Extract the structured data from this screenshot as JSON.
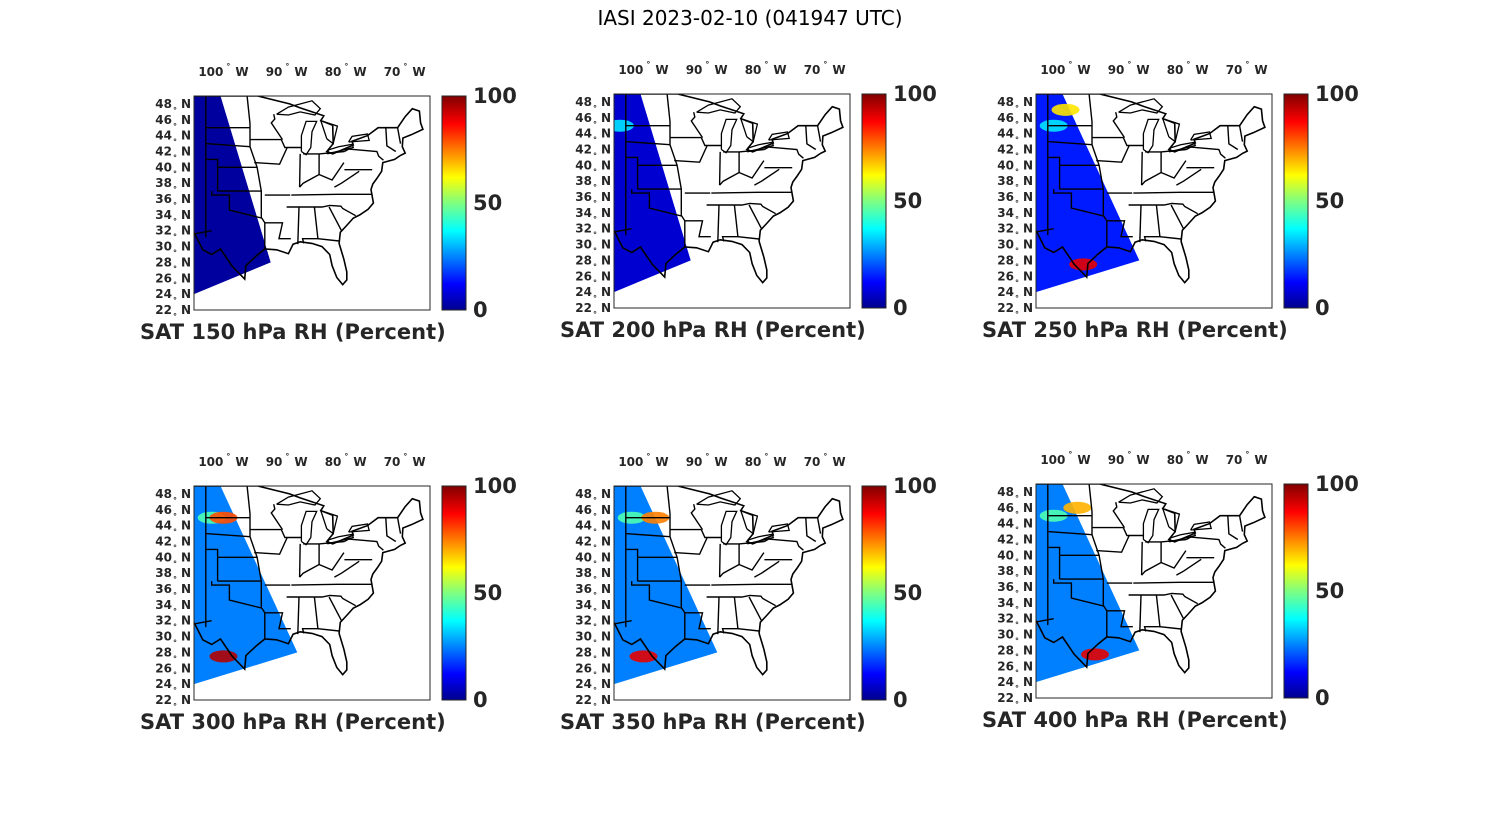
{
  "figure": {
    "title": "IASI 2023-02-10 (041947 UTC)"
  },
  "lon_ticks": [
    {
      "value": -100,
      "label": "100",
      "suffix": "W"
    },
    {
      "value": -90,
      "label": "90",
      "suffix": "W"
    },
    {
      "value": -80,
      "label": "80",
      "suffix": "W"
    },
    {
      "value": -70,
      "label": "70",
      "suffix": "W"
    }
  ],
  "lat_ticks": [
    {
      "value": 48,
      "label": "48",
      "suffix": "N"
    },
    {
      "value": 46,
      "label": "46",
      "suffix": "N"
    },
    {
      "value": 44,
      "label": "44",
      "suffix": "N"
    },
    {
      "value": 42,
      "label": "42",
      "suffix": "N"
    },
    {
      "value": 40,
      "label": "40",
      "suffix": "N"
    },
    {
      "value": 38,
      "label": "38",
      "suffix": "N"
    },
    {
      "value": 36,
      "label": "36",
      "suffix": "N"
    },
    {
      "value": 34,
      "label": "34",
      "suffix": "N"
    },
    {
      "value": 32,
      "label": "32",
      "suffix": "N"
    },
    {
      "value": 30,
      "label": "30",
      "suffix": "N"
    },
    {
      "value": 28,
      "label": "28",
      "suffix": "N"
    },
    {
      "value": 26,
      "label": "26",
      "suffix": "N"
    },
    {
      "value": 24,
      "label": "24",
      "suffix": "N"
    },
    {
      "value": 22,
      "label": "22",
      "suffix": "N"
    }
  ],
  "colorbar": {
    "min": 0,
    "max": 100,
    "ticks": [
      "100",
      "50",
      "0"
    ],
    "colormap": "jet"
  },
  "chart_data": [
    {
      "type": "heatmap",
      "title": "SAT 150 hPa RH (Percent)",
      "level_hPa": 150,
      "xlim": [
        -106,
        -66
      ],
      "ylim": [
        22,
        49
      ],
      "clim": [
        0,
        100
      ],
      "typical_rh": 3,
      "moist_patches": []
    },
    {
      "type": "heatmap",
      "title": "SAT 200 hPa RH (Percent)",
      "level_hPa": 200,
      "xlim": [
        -106,
        -66
      ],
      "ylim": [
        22,
        49
      ],
      "clim": [
        0,
        100
      ],
      "typical_rh": 8,
      "moist_patches": [
        {
          "lon": -105,
          "lat": 45,
          "value": 35
        }
      ]
    },
    {
      "type": "heatmap",
      "title": "SAT 250 hPa RH (Percent)",
      "level_hPa": 250,
      "xlim": [
        -106,
        -66
      ],
      "ylim": [
        22,
        49
      ],
      "clim": [
        0,
        100
      ],
      "typical_rh": 15,
      "moist_patches": [
        {
          "lon": -103,
          "lat": 45,
          "value": 35
        },
        {
          "lon": -101,
          "lat": 47,
          "value": 65
        },
        {
          "lon": -98,
          "lat": 27.5,
          "value": 90
        }
      ]
    },
    {
      "type": "heatmap",
      "title": "SAT 300 hPa RH (Percent)",
      "level_hPa": 300,
      "xlim": [
        -106,
        -66
      ],
      "ylim": [
        22,
        49
      ],
      "clim": [
        0,
        100
      ],
      "typical_rh": 25,
      "moist_patches": [
        {
          "lon": -103,
          "lat": 45,
          "value": 45
        },
        {
          "lon": -101,
          "lat": 45,
          "value": 80
        },
        {
          "lon": -101,
          "lat": 27.5,
          "value": 95
        }
      ]
    },
    {
      "type": "heatmap",
      "title": "SAT 350 hPa RH (Percent)",
      "level_hPa": 350,
      "xlim": [
        -106,
        -66
      ],
      "ylim": [
        22,
        49
      ],
      "clim": [
        0,
        100
      ],
      "typical_rh": 25,
      "moist_patches": [
        {
          "lon": -103,
          "lat": 45,
          "value": 45
        },
        {
          "lon": -99,
          "lat": 45,
          "value": 75
        },
        {
          "lon": -101,
          "lat": 27.5,
          "value": 90
        }
      ]
    },
    {
      "type": "heatmap",
      "title": "SAT 400 hPa RH (Percent)",
      "level_hPa": 400,
      "xlim": [
        -106,
        -66
      ],
      "ylim": [
        22,
        49
      ],
      "clim": [
        0,
        100
      ],
      "typical_rh": 25,
      "moist_patches": [
        {
          "lon": -103,
          "lat": 45,
          "value": 45
        },
        {
          "lon": -99,
          "lat": 46,
          "value": 70
        },
        {
          "lon": -96,
          "lat": 27.5,
          "value": 90
        }
      ]
    }
  ]
}
